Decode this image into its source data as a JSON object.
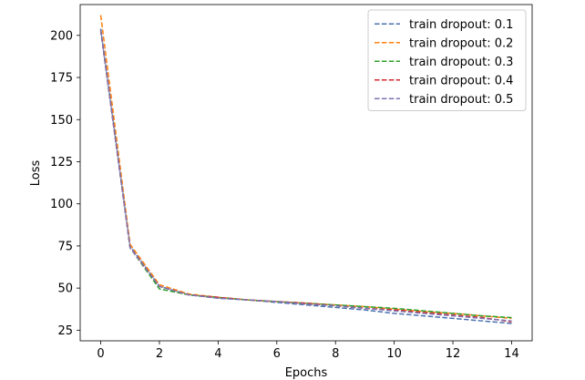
{
  "chart_data": {
    "type": "line",
    "title": "",
    "xlabel": "Epochs",
    "ylabel": "Loss",
    "xlim": [
      -0.7,
      14.7
    ],
    "ylim": [
      18.7,
      218.3
    ],
    "x_ticks": [
      0,
      2,
      4,
      6,
      8,
      10,
      12,
      14
    ],
    "y_ticks": [
      25,
      50,
      75,
      100,
      125,
      150,
      175,
      200
    ],
    "grid": false,
    "legend_position": "top-right",
    "line_style": "dashed",
    "x": [
      0,
      1,
      2,
      3,
      4,
      5,
      6,
      7,
      8,
      9,
      10,
      11,
      12,
      13,
      14
    ],
    "series": [
      {
        "name": "train dropout: 0.1",
        "color": "#4c72b0",
        "values": [
          204,
          75,
          51,
          46,
          44,
          43,
          41.5,
          40,
          38.5,
          37,
          35,
          33.5,
          32,
          30.5,
          29
        ]
      },
      {
        "name": "train dropout: 0.2",
        "color": "#ff7f0e",
        "values": [
          212,
          76,
          52,
          46.5,
          44.5,
          43,
          42,
          41,
          40,
          39,
          37.5,
          36,
          35,
          33.5,
          32
        ]
      },
      {
        "name": "train dropout: 0.3",
        "color": "#2ca02c",
        "values": [
          203,
          74,
          49.5,
          46,
          44.5,
          43,
          42,
          41,
          40,
          39,
          38,
          36.5,
          35,
          33.5,
          32.5
        ]
      },
      {
        "name": "train dropout: 0.4",
        "color": "#d62728",
        "values": [
          203,
          74,
          51,
          46,
          44.5,
          43,
          42,
          41,
          39.5,
          38,
          37,
          35.5,
          34,
          32.5,
          30
        ]
      },
      {
        "name": "train dropout: 0.5",
        "color": "#8172b2",
        "values": [
          203,
          74,
          51,
          46,
          44,
          43,
          42,
          40.5,
          39.5,
          38,
          36.5,
          35,
          33.5,
          32,
          30.5
        ]
      }
    ]
  }
}
